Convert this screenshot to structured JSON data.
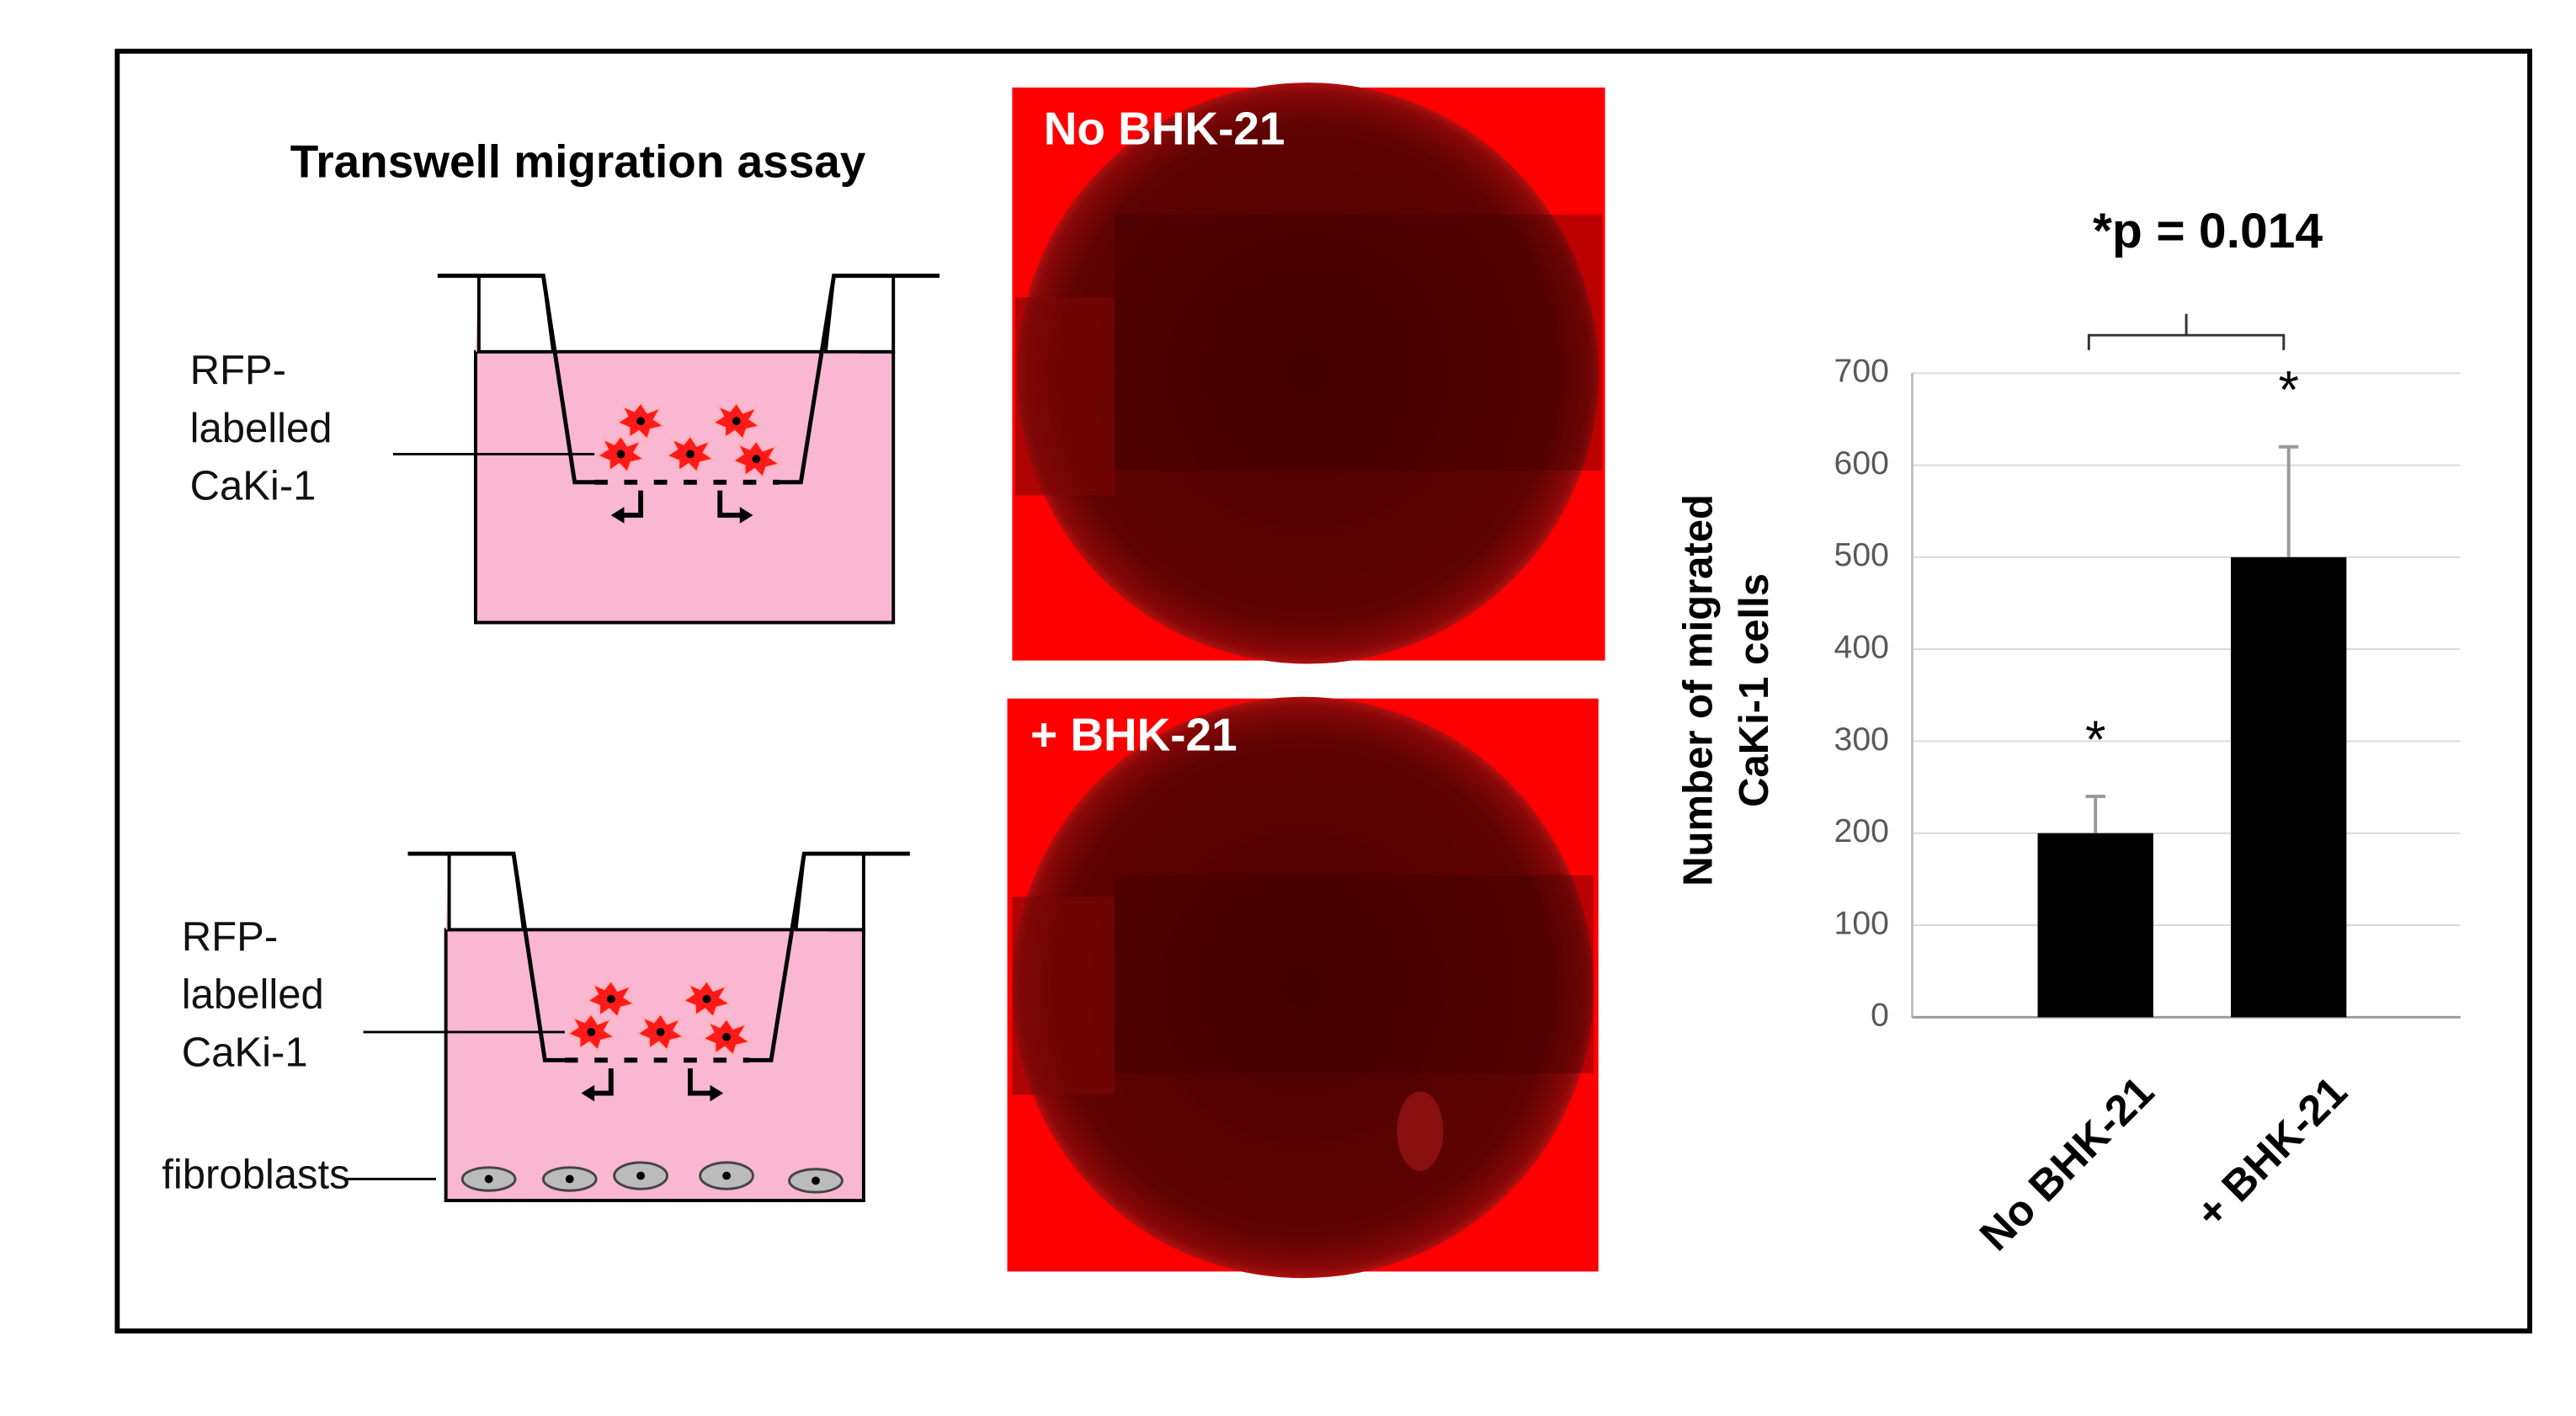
{
  "chart_data": {
    "type": "bar",
    "categories": [
      "No BHK-21",
      "+ BHK-21"
    ],
    "values": [
      200,
      500
    ],
    "errors": [
      40,
      120
    ],
    "significance_marks": [
      "*",
      "*"
    ],
    "annotation": "*p = 0.014",
    "ylabel": [
      "Number of migrated",
      "CaKi-1 cells"
    ],
    "color": "#000000",
    "ylim": [
      0,
      700
    ],
    "yticks": [
      0,
      100,
      200,
      300,
      400,
      500,
      600,
      700
    ],
    "grid": true
  },
  "diagram": {
    "title": "Transwell migration assay",
    "panels": [
      {
        "labels": [
          "RFP-",
          "labelled",
          "CaKi-1"
        ]
      },
      {
        "labels": [
          "RFP-",
          "labelled",
          "CaKi-1"
        ],
        "fibroblast_label": "fibroblasts"
      }
    ]
  },
  "images": [
    {
      "label": "No BHK-21"
    },
    {
      "label": "+ BHK-21"
    }
  ]
}
